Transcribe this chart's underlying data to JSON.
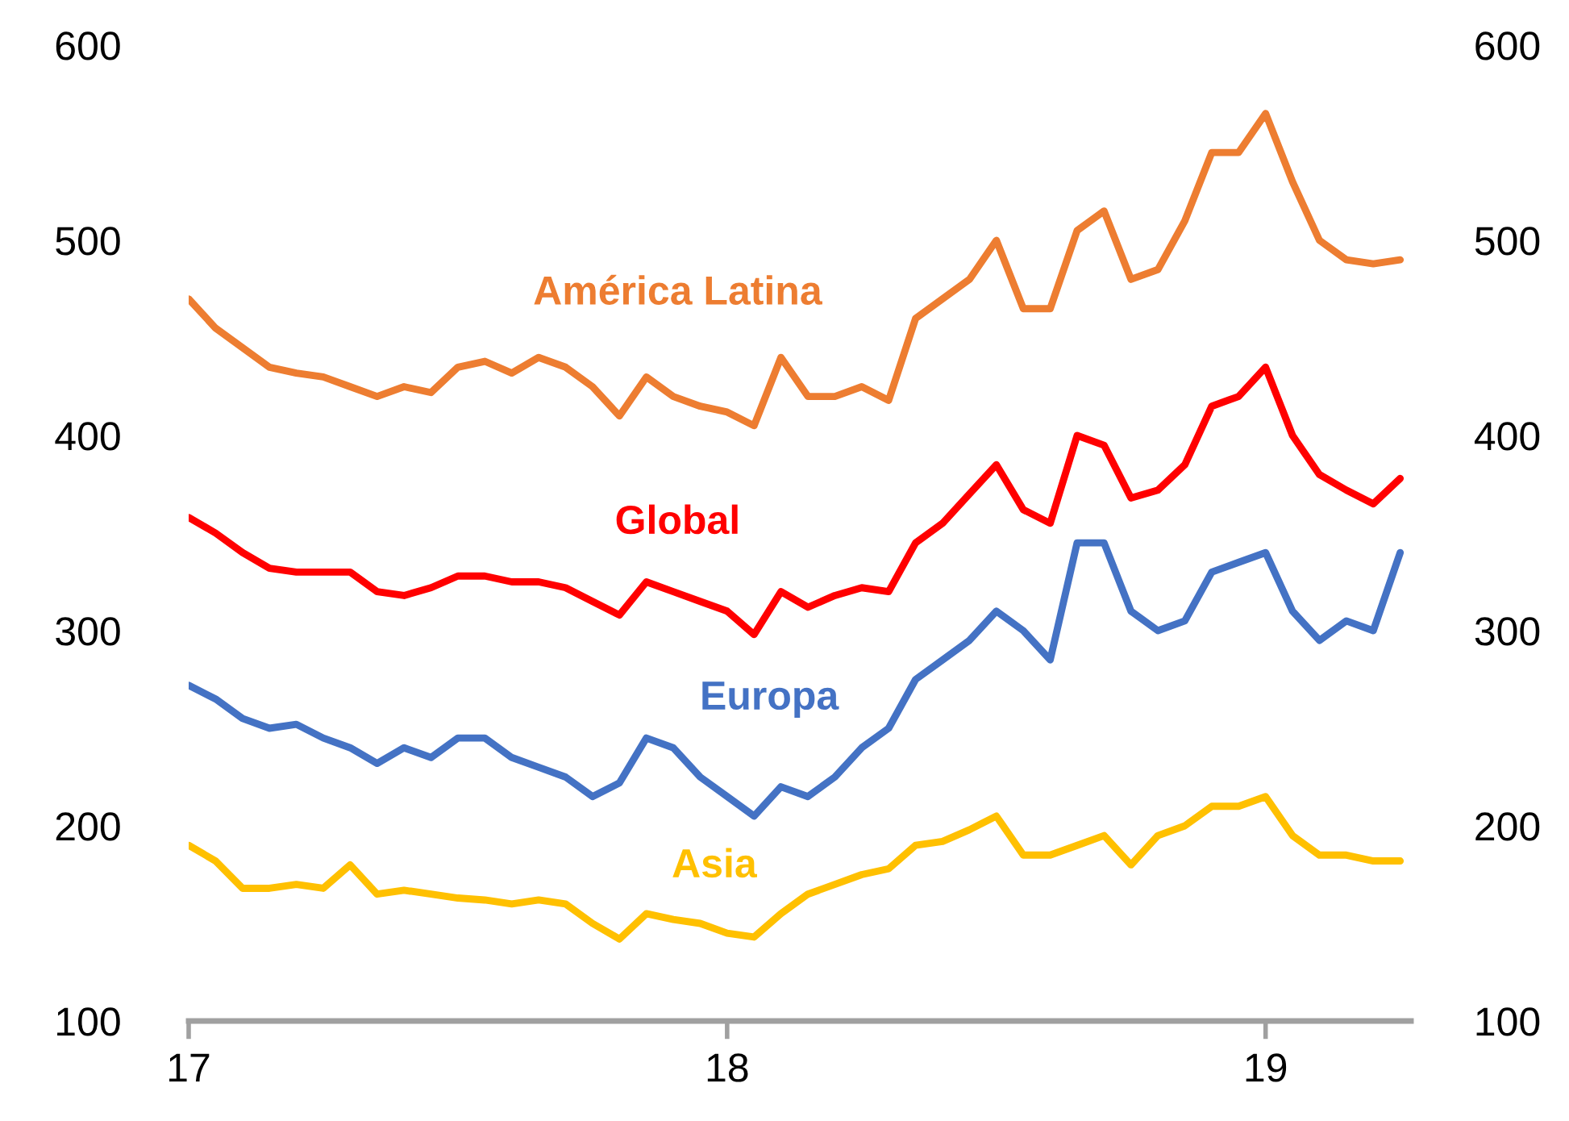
{
  "chart_data": {
    "type": "line",
    "x": [
      17.0,
      17.05,
      17.1,
      17.15,
      17.2,
      17.25,
      17.3,
      17.35,
      17.4,
      17.45,
      17.5,
      17.55,
      17.6,
      17.65,
      17.7,
      17.75,
      17.8,
      17.85,
      17.9,
      17.95,
      18.0,
      18.05,
      18.1,
      18.15,
      18.2,
      18.25,
      18.3,
      18.35,
      18.4,
      18.45,
      18.5,
      18.55,
      18.6,
      18.65,
      18.7,
      18.75,
      18.8,
      18.85,
      18.9,
      18.95,
      19.0,
      19.05,
      19.1,
      19.15,
      19.2,
      19.25
    ],
    "series": [
      {
        "name": "América Latina",
        "color": "#ed7d31",
        "values": [
          470,
          455,
          445,
          435,
          432,
          430,
          425,
          420,
          425,
          422,
          435,
          438,
          432,
          440,
          435,
          425,
          410,
          430,
          420,
          415,
          412,
          405,
          440,
          420,
          420,
          425,
          418,
          460,
          470,
          480,
          500,
          465,
          465,
          505,
          515,
          480,
          485,
          510,
          545,
          545,
          565,
          530,
          500,
          490,
          488,
          490
        ]
      },
      {
        "name": "Global",
        "color": "#ff0000",
        "values": [
          358,
          350,
          340,
          332,
          330,
          330,
          330,
          320,
          318,
          322,
          328,
          328,
          325,
          325,
          322,
          315,
          308,
          325,
          320,
          315,
          310,
          298,
          320,
          312,
          318,
          322,
          320,
          345,
          355,
          370,
          385,
          362,
          355,
          400,
          395,
          368,
          372,
          385,
          415,
          420,
          435,
          400,
          380,
          372,
          365,
          378
        ]
      },
      {
        "name": "Europa",
        "color": "#4472c4",
        "values": [
          272,
          265,
          255,
          250,
          252,
          245,
          240,
          232,
          240,
          235,
          245,
          245,
          235,
          230,
          225,
          215,
          222,
          245,
          240,
          225,
          215,
          205,
          220,
          215,
          225,
          240,
          250,
          275,
          285,
          295,
          310,
          300,
          285,
          345,
          345,
          310,
          300,
          305,
          330,
          335,
          340,
          310,
          295,
          305,
          300,
          340
        ]
      },
      {
        "name": "Asia",
        "color": "#ffc000",
        "values": [
          190,
          182,
          168,
          168,
          170,
          168,
          180,
          165,
          167,
          165,
          163,
          162,
          160,
          162,
          160,
          150,
          142,
          155,
          152,
          150,
          145,
          143,
          155,
          165,
          170,
          175,
          178,
          190,
          192,
          198,
          205,
          185,
          185,
          190,
          195,
          180,
          195,
          200,
          210,
          210,
          215,
          195,
          185,
          185,
          182,
          182
        ]
      }
    ],
    "xlim": [
      17,
      19.27
    ],
    "xticks": [
      17,
      18,
      19
    ],
    "ylim": [
      100,
      600
    ],
    "yticks": [
      100,
      200,
      300,
      400,
      500,
      600
    ],
    "y2lim": [
      100,
      600
    ],
    "y2ticks": [
      100,
      200,
      300,
      400,
      500,
      600
    ],
    "grid": false,
    "legend": false
  }
}
